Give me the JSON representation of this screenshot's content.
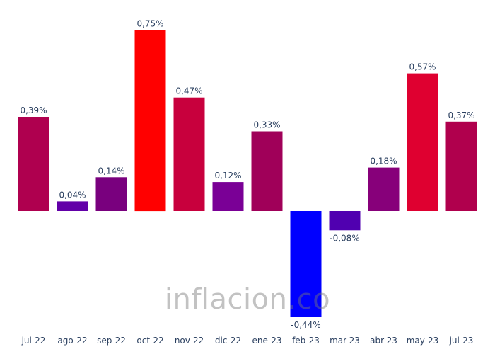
{
  "chart_data": {
    "type": "bar",
    "categories": [
      "jul-22",
      "ago-22",
      "sep-22",
      "oct-22",
      "nov-22",
      "dic-22",
      "ene-23",
      "feb-23",
      "mar-23",
      "abr-23",
      "may-23",
      "jul-23"
    ],
    "values": [
      0.39,
      0.04,
      0.14,
      0.75,
      0.47,
      0.12,
      0.33,
      -0.44,
      -0.08,
      0.18,
      0.57,
      0.37
    ],
    "labels": [
      "0,39%",
      "0,04%",
      "0,14%",
      "0,75%",
      "0,47%",
      "0,12%",
      "0,33%",
      "-0,44%",
      "-0,08%",
      "0,18%",
      "0,57%",
      "0,37%"
    ],
    "colors": [
      "#af004f",
      "#6200a8",
      "#79007e",
      "#ff0000",
      "#c8003d",
      "#7a0096",
      "#a00059",
      "#0000ff",
      "#5000b0",
      "#87007a",
      "#df0030",
      "#b0004d"
    ],
    "title": "",
    "xlabel": "",
    "ylabel": "",
    "ylim": [
      -0.44,
      0.75
    ]
  },
  "watermark": {
    "text": "inflacion.co"
  }
}
